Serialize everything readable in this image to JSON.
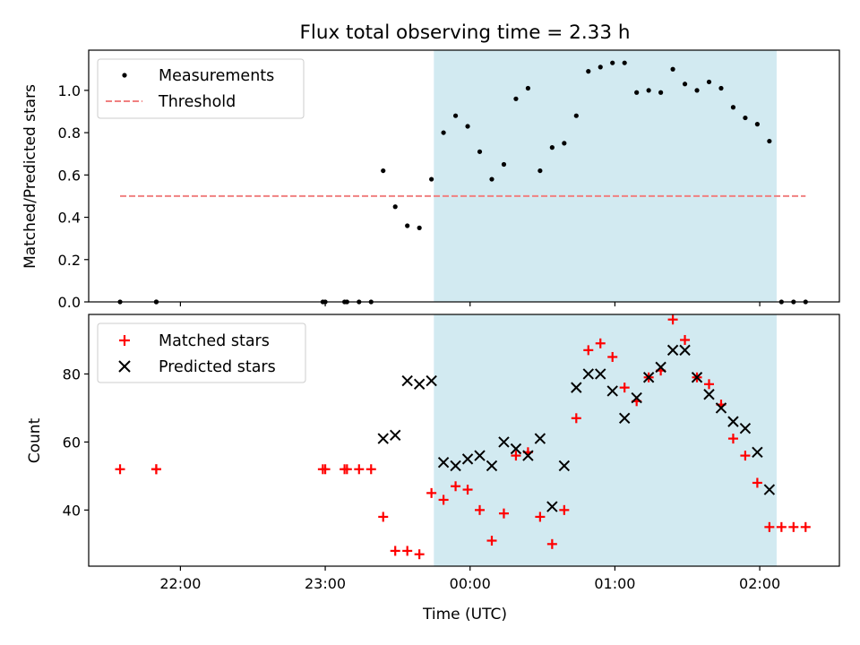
{
  "chart_data": [
    {
      "type": "scatter",
      "title": "Flux total observing time = 2.33 h",
      "ylabel": "Matched/Predicted stars",
      "xlabel": "",
      "ylim": [
        0,
        1.19
      ],
      "yticks": [
        0.0,
        0.2,
        0.4,
        0.6,
        0.8,
        1.0
      ],
      "ytick_labels": [
        "0.0",
        "0.2",
        "0.4",
        "0.6",
        "0.8",
        "1.0"
      ],
      "legend_position": "upper-left",
      "grid": false,
      "shaded_interval": {
        "start": "23:45",
        "end": "02:07",
        "color": "#add8e6"
      },
      "series": [
        {
          "name": "Measurements",
          "marker": "dot",
          "color": "#000000",
          "points": [
            [
              "21:35",
              0.0
            ],
            [
              "21:50",
              0.0
            ],
            [
              "21:50",
              0.0
            ],
            [
              "22:59",
              0.0
            ],
            [
              "23:00",
              0.0
            ],
            [
              "23:08",
              0.0
            ],
            [
              "23:09",
              0.0
            ],
            [
              "23:14",
              0.0
            ],
            [
              "23:19",
              0.0
            ],
            [
              "23:24",
              0.62
            ],
            [
              "23:29",
              0.45
            ],
            [
              "23:34",
              0.36
            ],
            [
              "23:39",
              0.35
            ],
            [
              "23:44",
              0.58
            ],
            [
              "23:49",
              0.8
            ],
            [
              "23:54",
              0.88
            ],
            [
              "23:59",
              0.83
            ],
            [
              "00:04",
              0.71
            ],
            [
              "00:09",
              0.58
            ],
            [
              "00:14",
              0.65
            ],
            [
              "00:19",
              0.96
            ],
            [
              "00:24",
              1.01
            ],
            [
              "00:29",
              0.62
            ],
            [
              "00:34",
              0.73
            ],
            [
              "00:39",
              0.75
            ],
            [
              "00:44",
              0.88
            ],
            [
              "00:49",
              1.09
            ],
            [
              "00:54",
              1.11
            ],
            [
              "00:59",
              1.13
            ],
            [
              "01:04",
              1.13
            ],
            [
              "01:09",
              0.99
            ],
            [
              "01:14",
              1.0
            ],
            [
              "01:19",
              0.99
            ],
            [
              "01:24",
              1.1
            ],
            [
              "01:29",
              1.03
            ],
            [
              "01:34",
              1.0
            ],
            [
              "01:39",
              1.04
            ],
            [
              "01:44",
              1.01
            ],
            [
              "01:49",
              0.92
            ],
            [
              "01:54",
              0.87
            ],
            [
              "01:59",
              0.84
            ],
            [
              "02:04",
              0.76
            ],
            [
              "02:09",
              0.0
            ],
            [
              "02:14",
              0.0
            ],
            [
              "02:19",
              0.0
            ]
          ]
        },
        {
          "name": "Threshold",
          "line": "dashed",
          "color": "#f08080",
          "points": [
            [
              "21:35",
              0.5
            ],
            [
              "02:19",
              0.5
            ]
          ]
        }
      ]
    },
    {
      "type": "scatter",
      "title": "",
      "ylabel": "Count",
      "xlabel": "Time (UTC)",
      "ylim": [
        23.5,
        97.5
      ],
      "yticks": [
        40,
        60,
        80
      ],
      "ytick_labels": [
        "40",
        "60",
        "80"
      ],
      "xlim": [
        "21:22",
        "02:33"
      ],
      "xticks": [
        "22:00",
        "23:00",
        "00:00",
        "01:00",
        "02:00"
      ],
      "xtick_labels": [
        "22:00",
        "23:00",
        "00:00",
        "01:00",
        "02:00"
      ],
      "legend_position": "upper-left",
      "grid": false,
      "shaded_interval": {
        "start": "23:45",
        "end": "02:07",
        "color": "#add8e6"
      },
      "series": [
        {
          "name": "Matched stars",
          "marker": "plus",
          "color": "#ff0000",
          "points": [
            [
              "21:35",
              52
            ],
            [
              "21:50",
              52
            ],
            [
              "21:50",
              52
            ],
            [
              "22:59",
              52
            ],
            [
              "23:00",
              52
            ],
            [
              "23:08",
              52
            ],
            [
              "23:09",
              52
            ],
            [
              "23:14",
              52
            ],
            [
              "23:19",
              52
            ],
            [
              "23:24",
              38
            ],
            [
              "23:29",
              28
            ],
            [
              "23:34",
              28
            ],
            [
              "23:39",
              27
            ],
            [
              "23:44",
              45
            ],
            [
              "23:49",
              43
            ],
            [
              "23:54",
              47
            ],
            [
              "23:59",
              46
            ],
            [
              "00:04",
              40
            ],
            [
              "00:09",
              31
            ],
            [
              "00:14",
              39
            ],
            [
              "00:19",
              56
            ],
            [
              "00:24",
              57
            ],
            [
              "00:29",
              38
            ],
            [
              "00:34",
              30
            ],
            [
              "00:39",
              40
            ],
            [
              "00:44",
              67
            ],
            [
              "00:49",
              87
            ],
            [
              "00:54",
              89
            ],
            [
              "00:59",
              85
            ],
            [
              "01:04",
              76
            ],
            [
              "01:09",
              72
            ],
            [
              "01:14",
              79
            ],
            [
              "01:19",
              81
            ],
            [
              "01:24",
              96
            ],
            [
              "01:29",
              90
            ],
            [
              "01:34",
              79
            ],
            [
              "01:39",
              77
            ],
            [
              "01:44",
              71
            ],
            [
              "01:49",
              61
            ],
            [
              "01:54",
              56
            ],
            [
              "01:59",
              48
            ],
            [
              "02:04",
              35
            ],
            [
              "02:09",
              35
            ],
            [
              "02:14",
              35
            ],
            [
              "02:19",
              35
            ]
          ]
        },
        {
          "name": "Predicted stars",
          "marker": "x",
          "color": "#000000",
          "points": [
            [
              "23:24",
              61
            ],
            [
              "23:29",
              62
            ],
            [
              "23:34",
              78
            ],
            [
              "23:39",
              77
            ],
            [
              "23:44",
              78
            ],
            [
              "23:49",
              54
            ],
            [
              "23:54",
              53
            ],
            [
              "23:59",
              55
            ],
            [
              "00:04",
              56
            ],
            [
              "00:09",
              53
            ],
            [
              "00:14",
              60
            ],
            [
              "00:19",
              58
            ],
            [
              "00:24",
              56
            ],
            [
              "00:29",
              61
            ],
            [
              "00:34",
              41
            ],
            [
              "00:39",
              53
            ],
            [
              "00:44",
              76
            ],
            [
              "00:49",
              80
            ],
            [
              "00:54",
              80
            ],
            [
              "00:59",
              75
            ],
            [
              "01:04",
              67
            ],
            [
              "01:09",
              73
            ],
            [
              "01:14",
              79
            ],
            [
              "01:19",
              82
            ],
            [
              "01:24",
              87
            ],
            [
              "01:29",
              87
            ],
            [
              "01:34",
              79
            ],
            [
              "01:39",
              74
            ],
            [
              "01:44",
              70
            ],
            [
              "01:49",
              66
            ],
            [
              "01:54",
              64
            ],
            [
              "01:59",
              57
            ],
            [
              "02:04",
              46
            ]
          ]
        }
      ]
    }
  ]
}
